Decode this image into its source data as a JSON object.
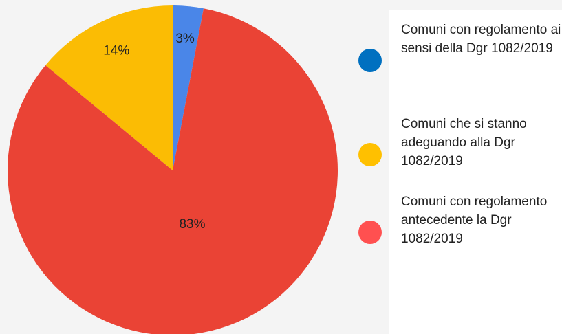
{
  "chart_data": {
    "type": "pie",
    "categories": [
      "Comuni con regolamento ai sensi della Dgr 1082/2019",
      "Comuni che si stanno adeguando alla Dgr 1082/2019",
      "Comuni con regolamento antecedente la Dgr 1082/2019"
    ],
    "values": [
      3,
      14,
      83
    ],
    "value_labels": [
      "3%",
      "14%",
      "83%"
    ],
    "colors": [
      "#4a86e8",
      "#fbbc04",
      "#ea4335"
    ],
    "legend_colors": [
      "#0070c0",
      "#ffc000",
      "#ff5050"
    ]
  }
}
